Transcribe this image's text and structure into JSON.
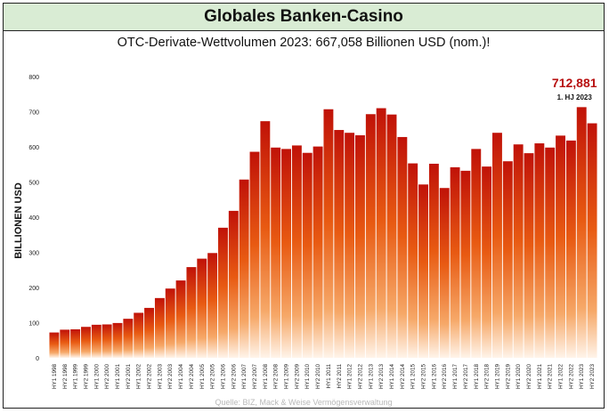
{
  "header": {
    "title": "Globales Banken-Casino"
  },
  "chart_data": {
    "type": "bar",
    "title": "OTC-Derivate-Wettvolumen 2023: 667,058 Billionen USD (nom.)!",
    "ylabel": "BILLIONEN USD",
    "xlabel": "",
    "ylim": [
      0,
      800
    ],
    "yticks": [
      0,
      100,
      200,
      300,
      400,
      500,
      600,
      700,
      800
    ],
    "grid": false,
    "annotation": {
      "value": "712,881",
      "label": "1. HJ 2023"
    },
    "source": "Quelle: BIZ, Mack & Weise Vermögensverwaltung",
    "colors": {
      "bar_top": "#c01208",
      "bar_mid": "#e85a12",
      "bar_bottom": "#fff4ea",
      "annotation": "#b81010"
    },
    "categories": [
      "HY1 1998",
      "HY2 1998",
      "HY1 1999",
      "HY2 1999",
      "HY1 2000",
      "HY2 2000",
      "HY1 2001",
      "HY2 2001",
      "HY1 2002",
      "HY2 2002",
      "HY1 2003",
      "HY2 2003",
      "HY1 2004",
      "HY2 2004",
      "HY1 2005",
      "HY2 2005",
      "HY1 2006",
      "HY2 2006",
      "HY1 2007",
      "HY2 2007",
      "HY1 2008",
      "HY2 2008",
      "HY1 2009",
      "HY2 2009",
      "HY1 2010",
      "HY2 2010",
      "HY1 2011",
      "HY2 2011",
      "HY1 2012",
      "HY2 2012",
      "HY1 2013",
      "HY2 2013",
      "HY1 2014",
      "HY2 2014",
      "HY1 2015",
      "HY2 2015",
      "HY1 2016",
      "HY2 2016",
      "HY1 2017",
      "HY2 2017",
      "HY1 2018",
      "HY2 2018",
      "HY1 2019",
      "HY2 2019",
      "HY1 2020",
      "HY2 2020",
      "HY1 2021",
      "HY2 2021",
      "HY1 2022",
      "HY2 2022",
      "HY1 2023",
      "HY2 2023"
    ],
    "values": [
      72,
      80,
      81,
      88,
      94,
      95,
      99,
      111,
      128,
      142,
      170,
      197,
      220,
      258,
      282,
      298,
      370,
      418,
      507,
      586,
      673,
      598,
      594,
      604,
      583,
      601,
      707,
      648,
      640,
      633,
      693,
      710,
      692,
      628,
      553,
      493,
      552,
      483,
      542,
      532,
      594,
      544,
      640,
      559,
      607,
      582,
      610,
      598,
      632,
      618,
      713,
      667
    ]
  }
}
